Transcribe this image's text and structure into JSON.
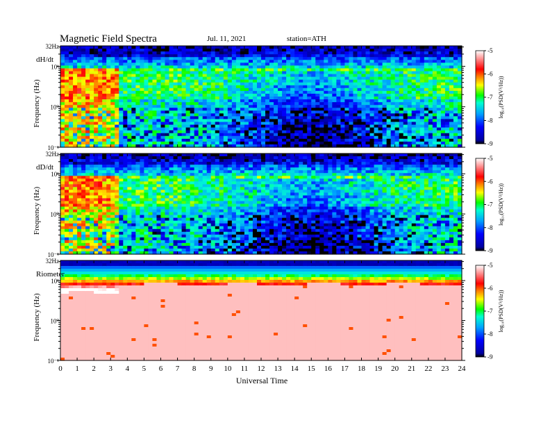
{
  "header": {
    "title": "Magnetic Field Spectra",
    "date": "Jul. 11, 2021",
    "station": "station=ATH"
  },
  "chart_data": [
    {
      "type": "heatmap",
      "panel_label": "dH/dt",
      "ylabel": "Frequency (Hz)",
      "y_scale": "log",
      "ylim": [
        0.1,
        32
      ],
      "y_tick_labels": [
        "10⁻¹",
        "10⁰",
        "10¹",
        "32Hz"
      ],
      "x_tick_labels": [
        "0",
        "1",
        "2",
        "3",
        "4",
        "5",
        "6",
        "7",
        "8",
        "9",
        "10",
        "11",
        "12",
        "13",
        "14",
        "15",
        "16",
        "17",
        "18",
        "19",
        "20",
        "21",
        "22",
        "23",
        "24"
      ],
      "colorbar": {
        "label": "log₁₀(PSD(V²/Hz))",
        "range": [
          -9,
          -5
        ],
        "tick_labels": [
          "-5",
          "-6",
          "-7",
          "-8",
          "-9"
        ]
      }
    },
    {
      "type": "heatmap",
      "panel_label": "dD/dt",
      "ylabel": "Frequency (Hz)",
      "y_scale": "log",
      "ylim": [
        0.1,
        32
      ],
      "y_tick_labels": [
        "10⁻¹",
        "10⁰",
        "10¹",
        "32Hz"
      ],
      "x_tick_labels": [
        "0",
        "1",
        "2",
        "3",
        "4",
        "5",
        "6",
        "7",
        "8",
        "9",
        "10",
        "11",
        "12",
        "13",
        "14",
        "15",
        "16",
        "17",
        "18",
        "19",
        "20",
        "21",
        "22",
        "23",
        "24"
      ],
      "colorbar": {
        "label": "log₁₀(PSD(V²/Hz))",
        "range": [
          -9,
          -5
        ],
        "tick_labels": [
          "-5",
          "-6",
          "-7",
          "-8",
          "-9"
        ]
      }
    },
    {
      "type": "heatmap",
      "panel_label": "Riometer",
      "ylabel": "Frequency (Hz)",
      "y_scale": "log",
      "ylim": [
        0.1,
        32
      ],
      "y_tick_labels": [
        "10⁻¹",
        "10⁰",
        "10¹",
        "32Hz"
      ],
      "x_tick_labels": [
        "0",
        "1",
        "2",
        "3",
        "4",
        "5",
        "6",
        "7",
        "8",
        "9",
        "10",
        "11",
        "12",
        "13",
        "14",
        "15",
        "16",
        "17",
        "18",
        "19",
        "20",
        "21",
        "22",
        "23",
        "24"
      ],
      "xlabel": "Universal Time",
      "xlim": [
        0,
        24
      ],
      "colorbar": {
        "label": "log₁₀(PSD(V²/Hz))",
        "range": [
          -9,
          -5
        ],
        "tick_labels": [
          "-5",
          "-6",
          "-7",
          "-8",
          "-9"
        ]
      }
    }
  ]
}
